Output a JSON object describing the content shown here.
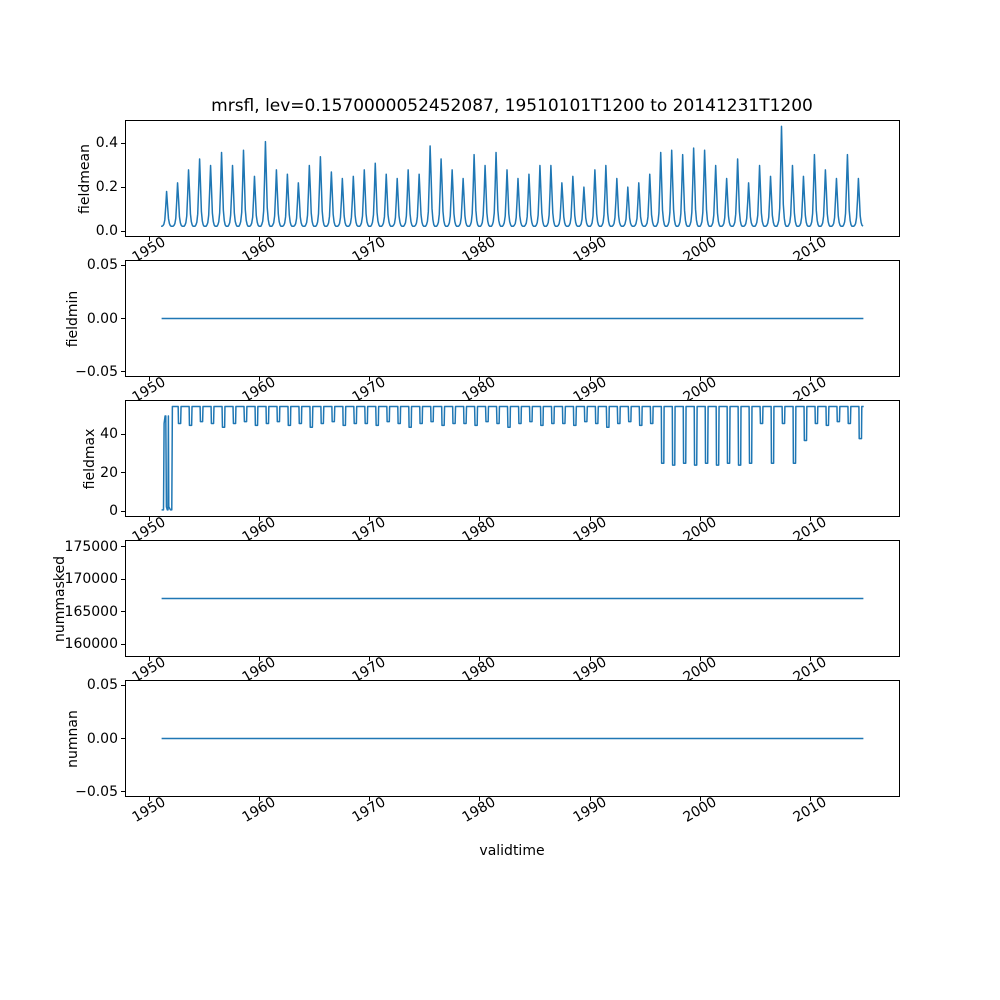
{
  "figure": {
    "title": "mrsfl, lev=0.1570000052452087, 19510101T1200 to 20141231T1200",
    "xlabel": "validtime",
    "background": "#ffffff",
    "line_color": "#1f77b4"
  },
  "chart_data": {
    "type": "line",
    "title": "mrsfl, lev=0.1570000052452087, 19510101T1200 to 20141231T1200",
    "xlabel": "validtime",
    "legend": "none",
    "grid": false,
    "xlim": [
      1947.8,
      2018.2
    ],
    "x_ticks": [
      1950,
      1960,
      1970,
      1980,
      1990,
      2000,
      2010
    ],
    "x_tick_labels": [
      "1950",
      "1960",
      "1970",
      "1980",
      "1990",
      "2000",
      "2010"
    ],
    "x_start": 1951.04,
    "x_end": 2014.96,
    "line_color": "#1f77b4",
    "subplots": [
      {
        "name": "fieldmean",
        "ylabel": "fieldmean",
        "ylim": [
          -0.025,
          0.505
        ],
        "yticks": [
          0.0,
          0.2,
          0.4
        ],
        "ytick_labels": [
          "0.0",
          "0.2",
          "0.4"
        ],
        "series_kind": "annual_spikes",
        "baseline": 0.02,
        "start_year": 1951,
        "spike_profile": [
          0,
          0,
          0.02,
          0.06,
          0.18,
          0.55,
          1.0,
          0.62,
          0.22,
          0.08,
          0.02,
          0
        ],
        "annual_peaks": [
          0.18,
          0.22,
          0.28,
          0.33,
          0.3,
          0.36,
          0.3,
          0.37,
          0.25,
          0.41,
          0.28,
          0.26,
          0.22,
          0.3,
          0.34,
          0.27,
          0.24,
          0.25,
          0.28,
          0.31,
          0.26,
          0.24,
          0.28,
          0.26,
          0.39,
          0.33,
          0.28,
          0.24,
          0.35,
          0.3,
          0.36,
          0.28,
          0.24,
          0.26,
          0.3,
          0.3,
          0.22,
          0.25,
          0.2,
          0.28,
          0.3,
          0.24,
          0.2,
          0.22,
          0.26,
          0.36,
          0.37,
          0.35,
          0.38,
          0.37,
          0.3,
          0.24,
          0.33,
          0.22,
          0.3,
          0.25,
          0.48,
          0.3,
          0.25,
          0.35,
          0.28,
          0.24,
          0.35,
          0.24
        ]
      },
      {
        "name": "fieldmin",
        "ylabel": "fieldmin",
        "ylim": [
          -0.055,
          0.055
        ],
        "yticks": [
          -0.05,
          0.0,
          0.05
        ],
        "ytick_labels": [
          "−0.05",
          "0.00",
          "0.05"
        ],
        "series_kind": "constant",
        "value": 0.0
      },
      {
        "name": "fieldmax",
        "ylabel": "fieldmax",
        "ylim": [
          -2.9,
          57.9
        ],
        "yticks": [
          0,
          20,
          40
        ],
        "ytick_labels": [
          "0",
          "20",
          "40"
        ],
        "series_kind": "annual_square",
        "start_year": 1952,
        "high": 55,
        "startup_points": [
          [
            1951.04,
            0.3
          ],
          [
            1951.22,
            0.3
          ],
          [
            1951.27,
            46
          ],
          [
            1951.36,
            50
          ],
          [
            1951.42,
            50
          ],
          [
            1951.48,
            2
          ],
          [
            1951.56,
            0.3
          ],
          [
            1951.62,
            0.3
          ],
          [
            1951.66,
            50
          ],
          [
            1951.7,
            2
          ],
          [
            1951.85,
            0.3
          ],
          [
            1951.97,
            0.3
          ]
        ],
        "annual_dips": [
          46,
          45,
          47,
          46,
          44,
          46,
          47,
          45,
          46,
          47,
          45,
          46,
          44,
          46,
          47,
          45,
          46,
          46,
          45,
          47,
          46,
          44,
          46,
          47,
          45,
          46,
          46,
          45,
          47,
          46,
          44,
          46,
          47,
          45,
          46,
          46,
          45,
          47,
          46,
          44,
          46,
          47,
          45,
          46,
          25,
          24,
          25,
          24,
          25,
          24,
          25,
          24,
          25,
          46,
          25,
          46,
          25,
          37,
          46,
          45,
          47,
          46,
          38
        ]
      },
      {
        "name": "nummasked",
        "ylabel": "nummasked",
        "ylim": [
          158000,
          176000
        ],
        "yticks": [
          160000,
          165000,
          170000,
          175000
        ],
        "ytick_labels": [
          "160000",
          "165000",
          "170000",
          "175000"
        ],
        "series_kind": "constant",
        "value": 167000
      },
      {
        "name": "numnan",
        "ylabel": "numnan",
        "ylim": [
          -0.055,
          0.055
        ],
        "yticks": [
          -0.05,
          0.0,
          0.05
        ],
        "ytick_labels": [
          "−0.05",
          "0.00",
          "0.05"
        ],
        "series_kind": "constant",
        "value": 0.0
      }
    ]
  }
}
